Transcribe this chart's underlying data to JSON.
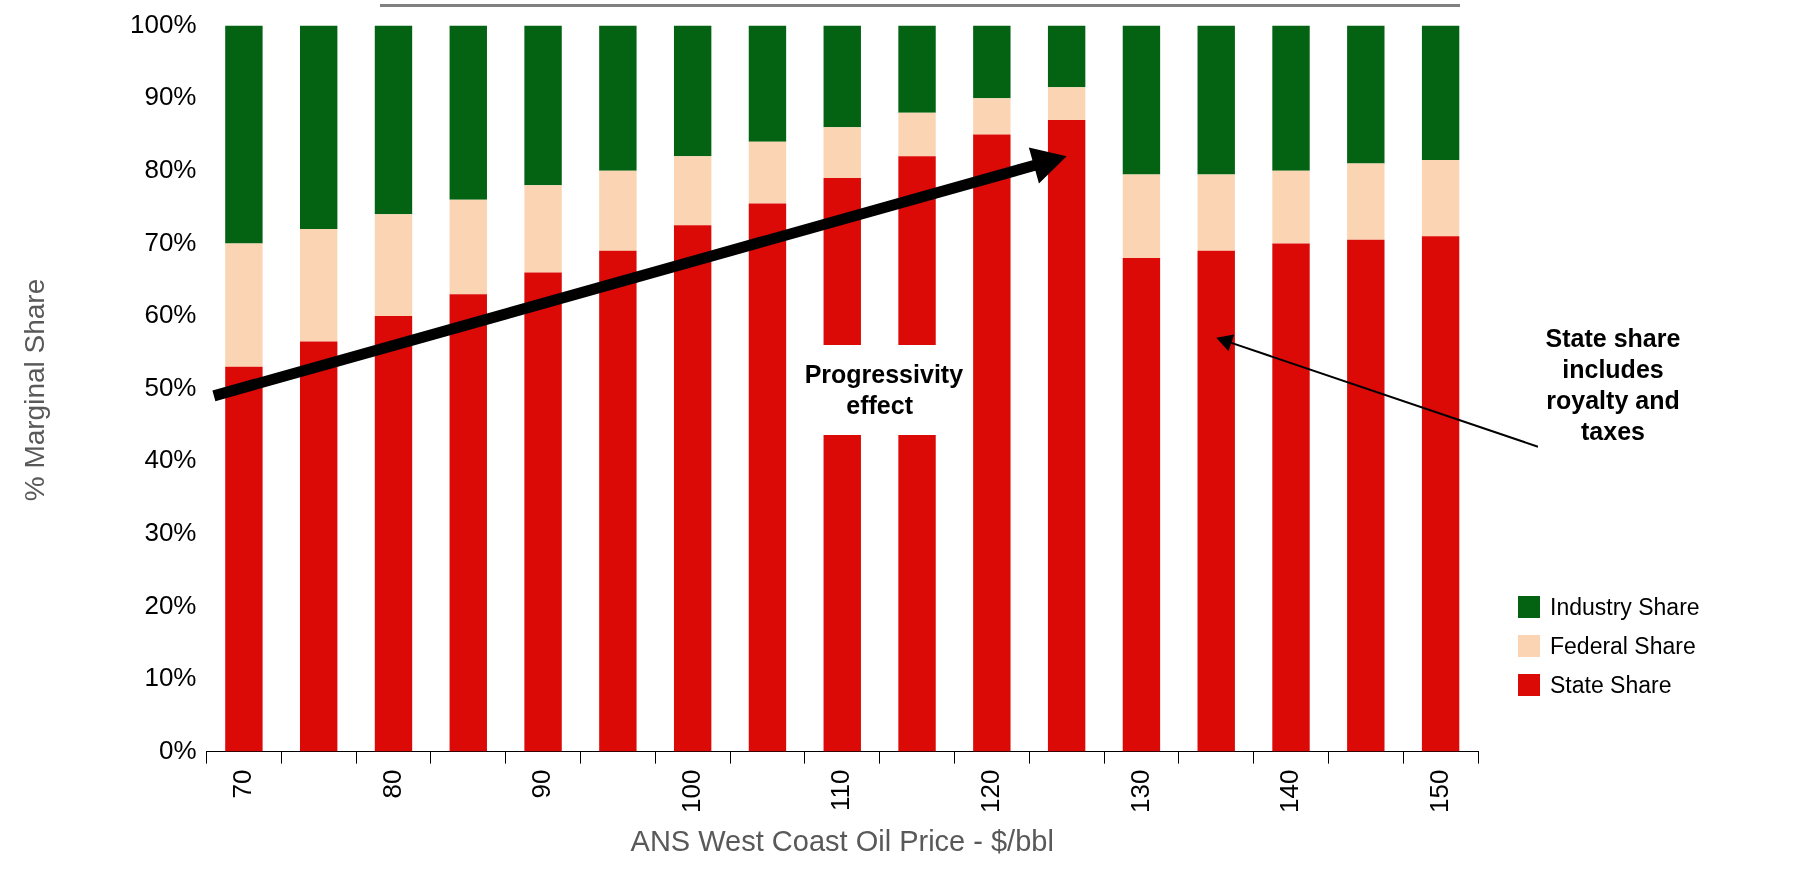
{
  "chart_data": {
    "type": "bar",
    "stacked": true,
    "xlabel": "ANS West Coast Oil Price - $/bbl",
    "ylabel": "% Marginal Share",
    "categories": [
      "70",
      null,
      "80",
      null,
      "90",
      null,
      "100",
      null,
      "110",
      null,
      "120",
      null,
      "130",
      null,
      "140",
      null,
      "150"
    ],
    "series": [
      {
        "name": "State Share",
        "color": "#dc0a07",
        "values": [
          53,
          56.5,
          60,
          63,
          66,
          69,
          72.5,
          75.5,
          79,
          82,
          85,
          87,
          68,
          69,
          70,
          70.5,
          71
        ]
      },
      {
        "name": "Federal Share",
        "color": "#fbd5b3",
        "values": [
          17,
          15.5,
          14,
          13,
          12,
          11,
          9.5,
          8.5,
          7,
          6,
          5,
          4.5,
          11.5,
          10.5,
          10,
          10.5,
          10.5
        ]
      },
      {
        "name": "Industry Share",
        "color": "#036312",
        "values": [
          30,
          28,
          26,
          24,
          22,
          20,
          18,
          16,
          14,
          12,
          10,
          8.5,
          20.5,
          20.5,
          20,
          19,
          18.5
        ]
      }
    ],
    "ylim": [
      0,
      100
    ],
    "yticks": [
      {
        "value": 0,
        "label": "0%"
      },
      {
        "value": 10,
        "label": "10%"
      },
      {
        "value": 20,
        "label": "20%"
      },
      {
        "value": 30,
        "label": "30%"
      },
      {
        "value": 40,
        "label": "40%"
      },
      {
        "value": 50,
        "label": "50%"
      },
      {
        "value": 60,
        "label": "60%"
      },
      {
        "value": 70,
        "label": "70%"
      },
      {
        "value": 80,
        "label": "80%"
      },
      {
        "value": 90,
        "label": "90%"
      },
      {
        "value": 100,
        "label": "100%"
      }
    ],
    "legend": "right",
    "annotations": [
      "Progressivity effect",
      "State share includes royalty and taxes"
    ]
  }
}
